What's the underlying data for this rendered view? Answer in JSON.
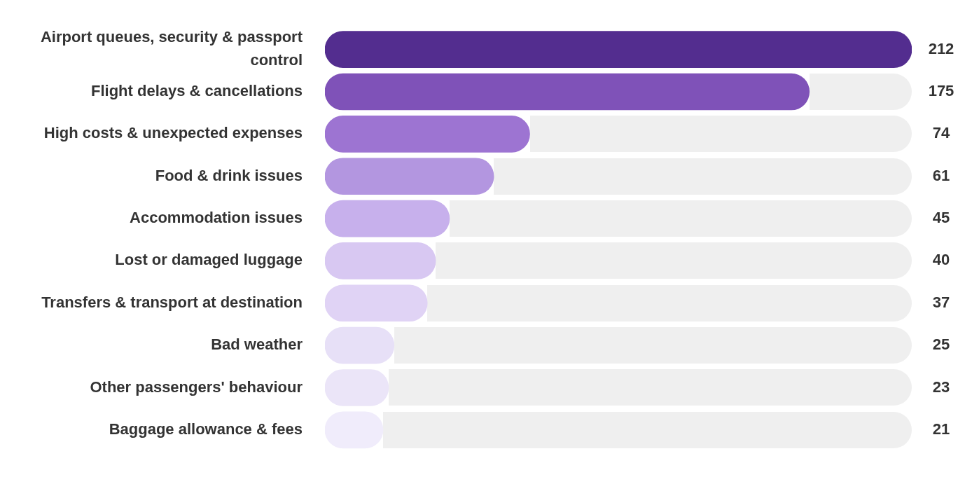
{
  "chart_data": {
    "type": "bar",
    "orientation": "horizontal",
    "data_labels": true,
    "grid": false,
    "legend": false,
    "tick_labels": "y",
    "categories": [
      "Airport queues, security & passport control",
      "Flight delays & cancellations",
      "High costs & unexpected expenses",
      "Food & drink issues",
      "Accommodation issues",
      "Lost or damaged luggage",
      "Transfers & transport at destination",
      "Bad weather",
      "Other passengers' behaviour",
      "Baggage allowance & fees"
    ],
    "values": [
      212,
      175,
      74,
      61,
      45,
      40,
      37,
      25,
      23,
      21
    ],
    "colors": [
      "#532d8f",
      "#7f52b8",
      "#9d74d2",
      "#b396e0",
      "#c7b0ec",
      "#d8c8f2",
      "#e0d3f5",
      "#e7e0f7",
      "#ebe5f8",
      "#f0ecfb"
    ]
  }
}
